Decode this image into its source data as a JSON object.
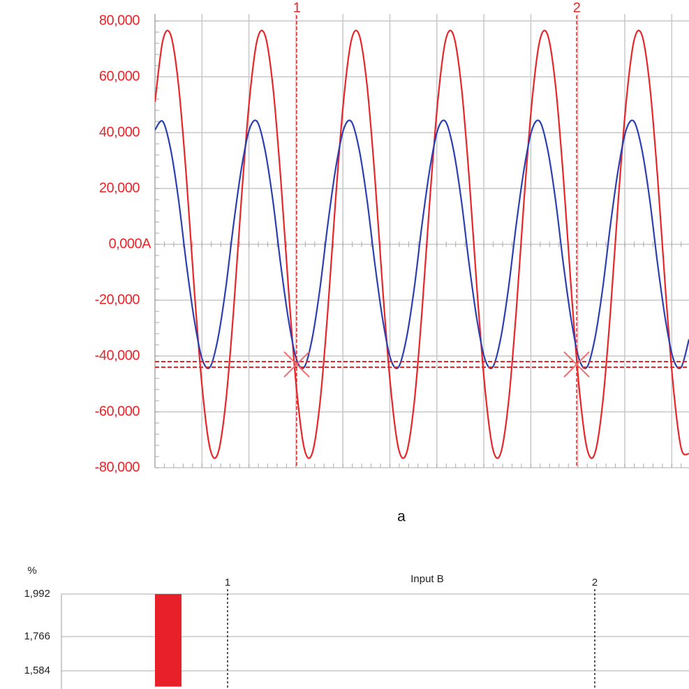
{
  "chart_data": [
    {
      "type": "line",
      "caption": "a",
      "categories": [
        null,
        null,
        null,
        null,
        null,
        null,
        null,
        null,
        null,
        null,
        null,
        null,
        null,
        null,
        null,
        null,
        null,
        null,
        null,
        null,
        null,
        null,
        null,
        null,
        null,
        null,
        null,
        null,
        null,
        null,
        null,
        null,
        null,
        null,
        null,
        null,
        null,
        null,
        null,
        null,
        null,
        null,
        null,
        null,
        null,
        null,
        null,
        null,
        null,
        null,
        null,
        null,
        null,
        null,
        null,
        null,
        null,
        null,
        null,
        null,
        null,
        null,
        null,
        null,
        null,
        null,
        null,
        null,
        null
      ],
      "series": [
        {
          "color": "#e8262a",
          "values": [
            51000,
            73000,
            75000,
            57000,
            24000,
            -16000,
            -51000,
            -73000,
            -75000,
            -57000,
            -24000,
            16000,
            51000,
            73000,
            75000,
            57000,
            24000,
            -16000,
            -51000,
            -73000,
            -75000,
            -57000,
            -24000,
            16000,
            51000,
            73000,
            75000,
            57000,
            24000,
            -16000,
            -51000,
            -73000,
            -75000,
            -57000,
            -24000,
            16000,
            51000,
            73000,
            75000,
            57000,
            24000,
            -16000,
            -51000,
            -73000,
            -75000,
            -57000,
            -24000,
            16000,
            51000,
            73000,
            75000,
            57000,
            24000,
            -16000,
            -51000,
            -73000,
            -75000,
            -57000,
            -24000,
            16000,
            51000,
            73000,
            75000,
            57000,
            24000,
            -16000,
            -51000,
            -73000,
            -75000
          ]
        },
        {
          "color": "#2b3fb0",
          "values": [
            41000,
            44000,
            34000,
            16000,
            -7000,
            -27000,
            -41000,
            -44000,
            -34000,
            -16000,
            7000,
            27000,
            41000,
            44000,
            34000,
            16000,
            -7000,
            -27000,
            -41000,
            -44000,
            -34000,
            -16000,
            7000,
            27000,
            41000,
            44000,
            34000,
            16000,
            -7000,
            -27000,
            -41000,
            -44000,
            -34000,
            -16000,
            7000,
            27000,
            41000,
            44000,
            34000,
            16000,
            -7000,
            -27000,
            -41000,
            -44000,
            -34000,
            -16000,
            7000,
            27000,
            41000,
            44000,
            34000,
            16000,
            -7000,
            -27000,
            -41000,
            -44000,
            -34000,
            -16000,
            7000,
            27000,
            41000,
            44000,
            34000,
            16000,
            -7000,
            -27000,
            -41000,
            -44000,
            -34000
          ]
        }
      ],
      "ylim": [
        -80000,
        80000
      ],
      "yticks": [
        {
          "value": 80000,
          "label": "80,000"
        },
        {
          "value": 60000,
          "label": "60,000"
        },
        {
          "value": 40000,
          "label": "40,000"
        },
        {
          "value": 20000,
          "label": "20,000"
        },
        {
          "value": 0,
          "label": "0,000A"
        },
        {
          "value": -20000,
          "label": "-20,000"
        },
        {
          "value": -40000,
          "label": "-40,000"
        },
        {
          "value": -60000,
          "label": "-60,000"
        },
        {
          "value": -80000,
          "label": "-80,000"
        }
      ],
      "grid": true,
      "hlines": [
        -42000,
        -44000
      ],
      "cursors": [
        "1",
        "2"
      ]
    },
    {
      "type": "bar",
      "title": "Input B",
      "y_unit": "%",
      "categories": [
        null
      ],
      "values": [
        1.992
      ],
      "color": "#e8202a",
      "ylim": [
        1.5,
        1.992
      ],
      "yticks": [
        {
          "value": 1.992,
          "label": "1,992"
        },
        {
          "value": 1.766,
          "label": "1,766"
        },
        {
          "value": 1.584,
          "label": "1,584"
        }
      ],
      "grid": true,
      "cursors": [
        "1",
        "2"
      ]
    }
  ]
}
